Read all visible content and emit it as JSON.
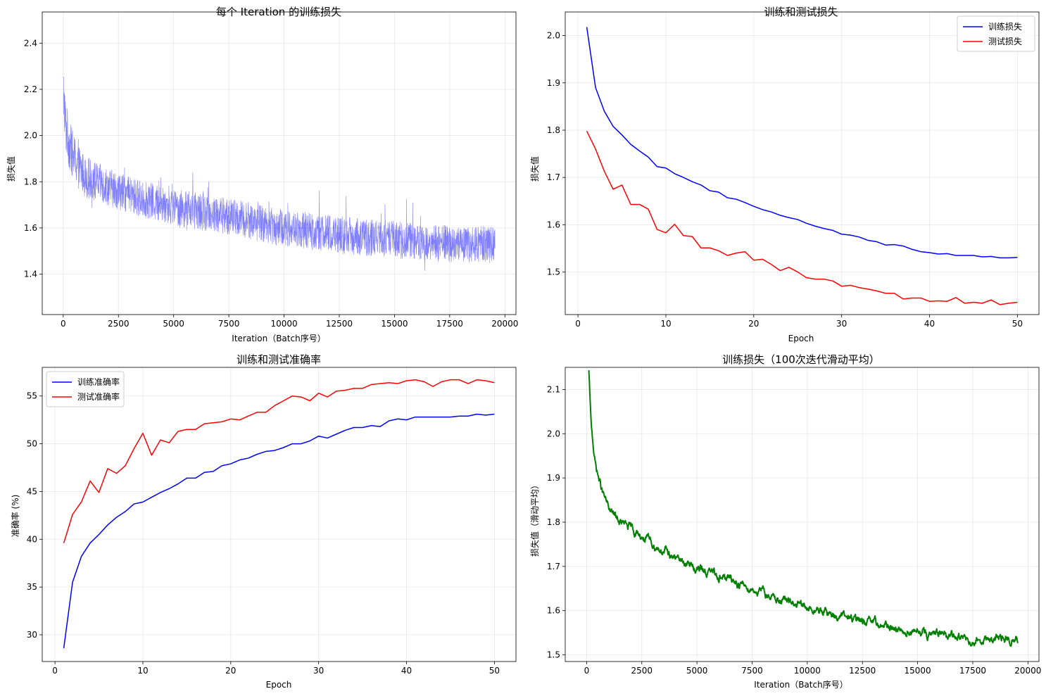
{
  "chart_data": [
    {
      "id": "iter-loss",
      "type": "line",
      "title": "每个 Iteration 的训练损失",
      "xlabel": "Iteration（Batch序号）",
      "ylabel": "损失值",
      "xlim": [
        -950,
        20500
      ],
      "ylim": [
        1.225,
        2.535
      ],
      "xticks": [
        0,
        2500,
        5000,
        7500,
        10000,
        12500,
        15000,
        17500,
        20000
      ],
      "yticks": [
        1.4,
        1.6,
        1.8,
        2.0,
        2.2,
        2.4
      ],
      "grid": true,
      "series": [
        {
          "color": "#0000ff",
          "opacity": 0.5,
          "linewidth": 0.6,
          "x_range": [
            0,
            19550
          ],
          "mean_curve": {
            "x": [
              0,
              100,
              300,
              600,
              1000,
              2000,
              3000,
              5000,
              7500,
              10000,
              12500,
              15000,
              17500,
              19550
            ],
            "y": [
              2.2,
              2.05,
              1.95,
              1.88,
              1.82,
              1.78,
              1.74,
              1.69,
              1.65,
              1.6,
              1.57,
              1.55,
              1.53,
              1.53
            ]
          },
          "noise_amplitude": 0.08
        }
      ]
    },
    {
      "id": "epoch-loss",
      "type": "line",
      "title": "训练和测试损失",
      "xlabel": "Epoch",
      "ylabel": "损失值",
      "xlim": [
        -1.45,
        52.45
      ],
      "ylim": [
        1.41,
        2.05
      ],
      "xticks": [
        0,
        10,
        20,
        30,
        40,
        50
      ],
      "yticks": [
        1.5,
        1.6,
        1.7,
        1.8,
        1.9,
        2.0
      ],
      "grid": true,
      "legend": "top-right",
      "x": [
        1,
        2,
        3,
        4,
        5,
        6,
        7,
        8,
        9,
        10,
        11,
        12,
        13,
        14,
        15,
        16,
        17,
        18,
        19,
        20,
        21,
        22,
        23,
        24,
        25,
        26,
        27,
        28,
        29,
        30,
        31,
        32,
        33,
        34,
        35,
        36,
        37,
        38,
        39,
        40,
        41,
        42,
        43,
        44,
        45,
        46,
        47,
        48,
        49,
        50
      ],
      "series": [
        {
          "name": "训练损失",
          "color": "#0000ff",
          "values": [
            2.018,
            1.89,
            1.84,
            1.808,
            1.79,
            1.77,
            1.756,
            1.743,
            1.723,
            1.72,
            1.708,
            1.7,
            1.691,
            1.684,
            1.672,
            1.669,
            1.657,
            1.654,
            1.647,
            1.639,
            1.632,
            1.627,
            1.62,
            1.615,
            1.611,
            1.603,
            1.597,
            1.592,
            1.588,
            1.58,
            1.578,
            1.574,
            1.567,
            1.564,
            1.557,
            1.558,
            1.555,
            1.548,
            1.543,
            1.541,
            1.538,
            1.539,
            1.535,
            1.535,
            1.535,
            1.532,
            1.533,
            1.53,
            1.53,
            1.531
          ]
        },
        {
          "name": "测试损失",
          "color": "#ff0000",
          "values": [
            1.798,
            1.76,
            1.713,
            1.675,
            1.684,
            1.643,
            1.643,
            1.633,
            1.59,
            1.583,
            1.601,
            1.577,
            1.575,
            1.551,
            1.551,
            1.545,
            1.535,
            1.54,
            1.543,
            1.525,
            1.527,
            1.516,
            1.503,
            1.51,
            1.5,
            1.488,
            1.485,
            1.485,
            1.481,
            1.47,
            1.472,
            1.467,
            1.464,
            1.46,
            1.455,
            1.455,
            1.443,
            1.445,
            1.445,
            1.438,
            1.439,
            1.438,
            1.446,
            1.434,
            1.436,
            1.434,
            1.441,
            1.431,
            1.434,
            1.436
          ]
        }
      ]
    },
    {
      "id": "epoch-acc",
      "type": "line",
      "title": "训练和测试准确率",
      "xlabel": "Epoch",
      "ylabel": "准确率 (%)",
      "xlim": [
        -1.45,
        52.45
      ],
      "ylim": [
        27.2,
        58.0
      ],
      "xticks": [
        0,
        10,
        20,
        30,
        40,
        50
      ],
      "yticks": [
        30,
        35,
        40,
        45,
        50,
        55
      ],
      "grid": true,
      "legend": "top-left",
      "x": [
        1,
        2,
        3,
        4,
        5,
        6,
        7,
        8,
        9,
        10,
        11,
        12,
        13,
        14,
        15,
        16,
        17,
        18,
        19,
        20,
        21,
        22,
        23,
        24,
        25,
        26,
        27,
        28,
        29,
        30,
        31,
        32,
        33,
        34,
        35,
        36,
        37,
        38,
        39,
        40,
        41,
        42,
        43,
        44,
        45,
        46,
        47,
        48,
        49,
        50
      ],
      "series": [
        {
          "name": "训练准确率",
          "color": "#0000ff",
          "values": [
            28.6,
            35.5,
            38.2,
            39.6,
            40.5,
            41.5,
            42.3,
            42.9,
            43.7,
            43.9,
            44.4,
            44.9,
            45.3,
            45.8,
            46.4,
            46.4,
            47.0,
            47.1,
            47.7,
            47.9,
            48.3,
            48.5,
            48.9,
            49.2,
            49.3,
            49.6,
            50.0,
            50.0,
            50.3,
            50.8,
            50.6,
            51.0,
            51.4,
            51.7,
            51.7,
            51.9,
            51.8,
            52.4,
            52.6,
            52.5,
            52.8,
            52.8,
            52.8,
            52.8,
            52.8,
            52.9,
            52.9,
            53.1,
            53.0,
            53.1
          ]
        },
        {
          "name": "测试准确率",
          "color": "#ff0000",
          "values": [
            39.6,
            42.6,
            43.9,
            46.1,
            44.9,
            47.4,
            46.9,
            47.7,
            49.5,
            51.1,
            48.8,
            50.4,
            50.1,
            51.3,
            51.5,
            51.5,
            52.1,
            52.2,
            52.3,
            52.6,
            52.5,
            52.9,
            53.3,
            53.3,
            54.0,
            54.5,
            55.0,
            54.9,
            54.5,
            55.3,
            54.9,
            55.5,
            55.6,
            55.8,
            55.8,
            56.2,
            56.3,
            56.4,
            56.3,
            56.6,
            56.7,
            56.5,
            56.0,
            56.5,
            56.7,
            56.7,
            56.3,
            56.7,
            56.6,
            56.4
          ]
        }
      ]
    },
    {
      "id": "moving-avg",
      "type": "line",
      "title": "训练损失（100次迭代滑动平均）",
      "xlabel": "Iteration（Batch序号）",
      "ylabel": "损失值（滑动平均）",
      "xlim": [
        -970,
        20500
      ],
      "ylim": [
        1.485,
        2.15
      ],
      "xticks": [
        0,
        2500,
        5000,
        7500,
        10000,
        12500,
        15000,
        17500,
        20000
      ],
      "yticks": [
        1.5,
        1.6,
        1.7,
        1.8,
        1.9,
        2.0,
        2.1
      ],
      "grid": true,
      "series": [
        {
          "color": "#008000",
          "linewidth": 2,
          "x_range": [
            100,
            19550
          ],
          "mean_curve": {
            "x": [
              100,
              200,
              400,
              700,
              1000,
              1500,
              2000,
              3000,
              4000,
              5000,
              6000,
              7500,
              9000,
              10000,
              12500,
              15000,
              17500,
              19550
            ],
            "y": [
              2.14,
              2.02,
              1.93,
              1.87,
              1.83,
              1.8,
              1.785,
              1.75,
              1.72,
              1.695,
              1.68,
              1.65,
              1.62,
              1.605,
              1.575,
              1.55,
              1.535,
              1.535
            ]
          },
          "noise_amplitude": 0.012
        }
      ]
    }
  ]
}
